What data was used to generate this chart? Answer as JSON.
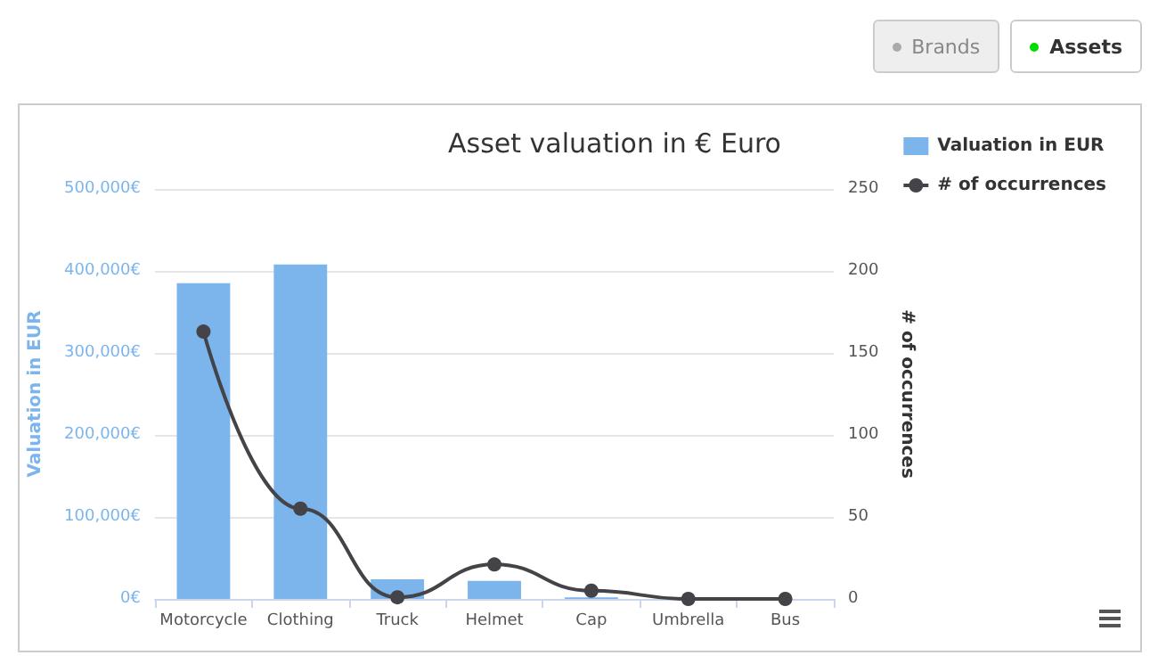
{
  "chart_data": {
    "type": "bar",
    "title": "Asset valuation in € Euro",
    "ylabel": "Valuation in EUR",
    "y2label": "# of occurrences",
    "categories": [
      "Motorcycle",
      "Clothing",
      "Truck",
      "Helmet",
      "Cap",
      "Umbrella",
      "Bus"
    ],
    "series": [
      {
        "name": "Valuation in EUR",
        "color": "#7cb5ec",
        "values": [
          385000,
          408000,
          24000,
          22000,
          2000,
          0,
          0
        ]
      },
      {
        "name": "# of occurrences",
        "type": "line",
        "axis": "y2",
        "color": "#434348",
        "marker": "circle",
        "values": [
          163,
          55,
          1,
          21,
          5,
          0,
          0
        ]
      }
    ],
    "ylim": [
      0,
      500000
    ],
    "yticks": [
      {
        "value": 0,
        "label": "0€"
      },
      {
        "value": 100000,
        "label": "100,000€"
      },
      {
        "value": 200000,
        "label": "200,000€"
      },
      {
        "value": 300000,
        "label": "300,000€"
      },
      {
        "value": 400000,
        "label": "400,000€"
      },
      {
        "value": 500000,
        "label": "500,000€"
      }
    ],
    "y2lim": [
      0,
      250
    ],
    "y2ticks": [
      0,
      50,
      100,
      150,
      200,
      250
    ],
    "grid": "y",
    "legend": "top right",
    "annotations": [
      "Brands",
      "Assets"
    ]
  }
}
